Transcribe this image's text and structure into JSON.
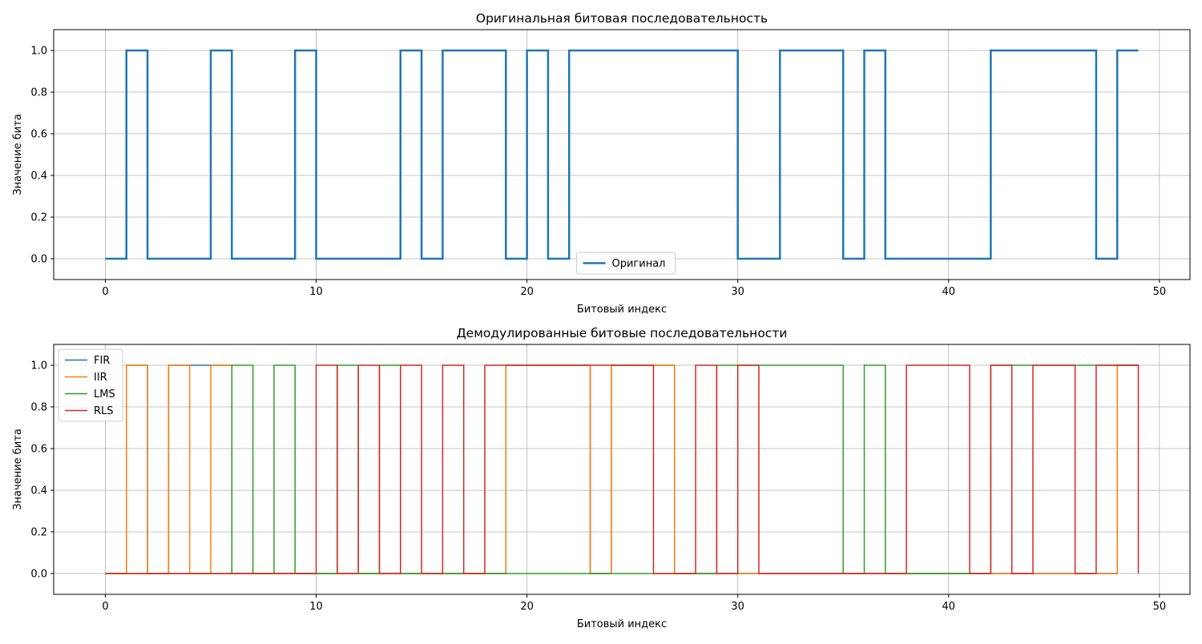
{
  "chart_data": [
    {
      "type": "line",
      "step": "post",
      "title": "Оригинальная битовая последовательность",
      "xlabel": "Битовый индекс",
      "ylabel": "Значение бита",
      "xlim": [
        -2.45,
        51.45
      ],
      "ylim": [
        -0.1,
        1.1
      ],
      "xticks": [
        0,
        10,
        20,
        30,
        40,
        50
      ],
      "yticks": [
        0.0,
        0.2,
        0.4,
        0.6,
        0.8,
        1.0
      ],
      "xtick_labels": [
        "0",
        "10",
        "20",
        "30",
        "40",
        "50"
      ],
      "ytick_labels": [
        "0.0",
        "0.2",
        "0.4",
        "0.6",
        "0.8",
        "1.0"
      ],
      "grid": true,
      "legend_position": "lower-center",
      "series": [
        {
          "name": "Оригинал",
          "color": "#1f77b4",
          "values": [
            0,
            1,
            0,
            0,
            0,
            1,
            0,
            0,
            0,
            1,
            0,
            0,
            0,
            0,
            1,
            0,
            1,
            1,
            1,
            0,
            1,
            0,
            1,
            1,
            1,
            1,
            1,
            1,
            1,
            1,
            0,
            0,
            1,
            1,
            1,
            0,
            1,
            0,
            0,
            0,
            0,
            0,
            1,
            1,
            1,
            1,
            1,
            0,
            1,
            1
          ]
        }
      ]
    },
    {
      "type": "line",
      "step": "post",
      "title": "Демодулированные битовые последовательности",
      "xlabel": "Битовый индекс",
      "ylabel": "Значение бита",
      "xlim": [
        -2.45,
        51.45
      ],
      "ylim": [
        -0.1,
        1.1
      ],
      "xticks": [
        0,
        10,
        20,
        30,
        40,
        50
      ],
      "yticks": [
        0.0,
        0.2,
        0.4,
        0.6,
        0.8,
        1.0
      ],
      "xtick_labels": [
        "0",
        "10",
        "20",
        "30",
        "40",
        "50"
      ],
      "ytick_labels": [
        "0.0",
        "0.2",
        "0.4",
        "0.6",
        "0.8",
        "1.0"
      ],
      "grid": true,
      "legend_position": "upper-left",
      "series": [
        {
          "name": "FIR",
          "color": "#1f77b4",
          "values": [
            0,
            1,
            0,
            1,
            1,
            1,
            0,
            0,
            0,
            0,
            0,
            0,
            0,
            0,
            0,
            0,
            0,
            0,
            0,
            1,
            1,
            1,
            1,
            0,
            1,
            1,
            1,
            0,
            0,
            0,
            0,
            0,
            0,
            0,
            0,
            0,
            0,
            0,
            0,
            0,
            0,
            0,
            0,
            0,
            0,
            0,
            0,
            0,
            1,
            1
          ]
        },
        {
          "name": "IIR",
          "color": "#ff7f0e",
          "values": [
            0,
            1,
            0,
            1,
            0,
            1,
            0,
            0,
            0,
            0,
            0,
            0,
            0,
            0,
            0,
            0,
            0,
            0,
            0,
            1,
            1,
            1,
            1,
            0,
            1,
            1,
            1,
            0,
            0,
            0,
            0,
            0,
            0,
            0,
            0,
            0,
            0,
            0,
            0,
            0,
            0,
            0,
            0,
            0,
            0,
            0,
            0,
            0,
            1,
            1
          ]
        },
        {
          "name": "LMS",
          "color": "#2ca02c",
          "values": [
            0,
            0,
            0,
            0,
            0,
            0,
            1,
            0,
            1,
            0,
            0,
            1,
            0,
            1,
            0,
            0,
            0,
            0,
            0,
            0,
            0,
            0,
            0,
            0,
            0,
            0,
            0,
            0,
            0,
            1,
            1,
            1,
            1,
            1,
            1,
            0,
            1,
            0,
            0,
            0,
            0,
            0,
            1,
            1,
            1,
            1,
            1,
            1,
            1,
            1
          ]
        },
        {
          "name": "RLS",
          "color": "#d62728",
          "values": [
            0,
            0,
            0,
            0,
            0,
            0,
            0,
            0,
            0,
            0,
            1,
            0,
            1,
            0,
            1,
            0,
            1,
            0,
            1,
            1,
            1,
            1,
            1,
            1,
            1,
            1,
            0,
            0,
            1,
            0,
            1,
            0,
            0,
            0,
            0,
            0,
            0,
            0,
            1,
            1,
            1,
            0,
            1,
            0,
            1,
            1,
            0,
            1,
            1,
            0
          ]
        }
      ]
    }
  ]
}
